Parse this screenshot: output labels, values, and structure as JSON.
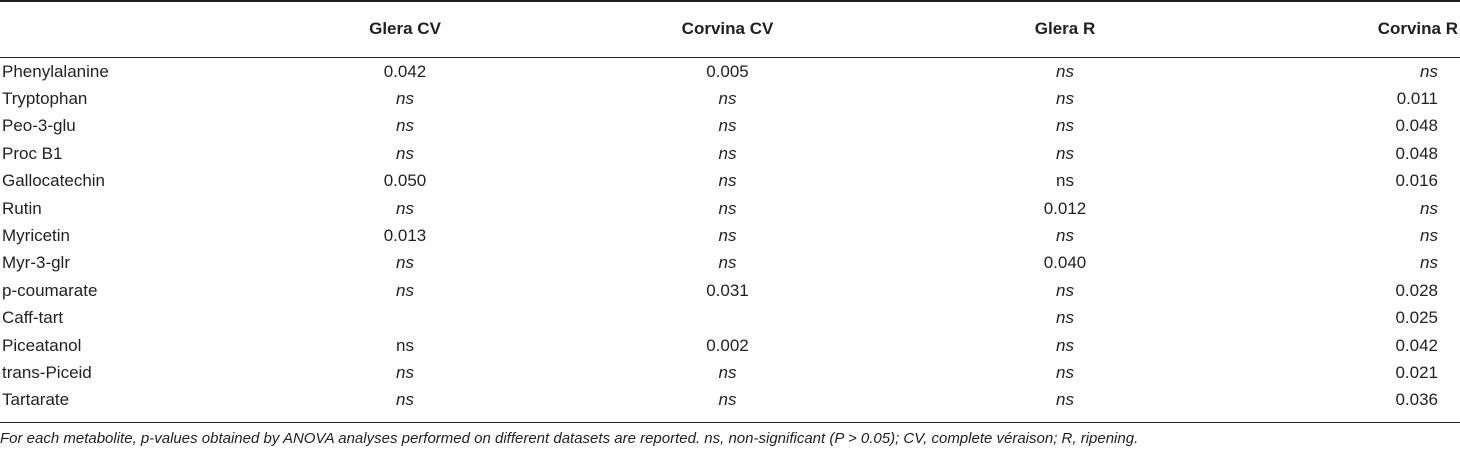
{
  "table": {
    "headers": [
      "",
      "Glera CV",
      "Corvina CV",
      "Glera R",
      "Corvina R"
    ],
    "rows": [
      {
        "name": "Phenylalanine",
        "cells": [
          {
            "text": "0.042",
            "italic": false
          },
          {
            "text": "0.005",
            "italic": false
          },
          {
            "text": "ns",
            "italic": true
          },
          {
            "text": "ns",
            "italic": true
          }
        ]
      },
      {
        "name": "Tryptophan",
        "cells": [
          {
            "text": "ns",
            "italic": true
          },
          {
            "text": "ns",
            "italic": true
          },
          {
            "text": "ns",
            "italic": true
          },
          {
            "text": "0.011",
            "italic": false
          }
        ]
      },
      {
        "name": "Peo-3-glu",
        "cells": [
          {
            "text": "ns",
            "italic": true
          },
          {
            "text": "ns",
            "italic": true
          },
          {
            "text": "ns",
            "italic": true
          },
          {
            "text": "0.048",
            "italic": false
          }
        ]
      },
      {
        "name": "Proc B1",
        "cells": [
          {
            "text": "ns",
            "italic": true
          },
          {
            "text": "ns",
            "italic": true
          },
          {
            "text": "ns",
            "italic": true
          },
          {
            "text": "0.048",
            "italic": false
          }
        ]
      },
      {
        "name": "Gallocatechin",
        "cells": [
          {
            "text": "0.050",
            "italic": false
          },
          {
            "text": "ns",
            "italic": true
          },
          {
            "text": "ns",
            "italic": false
          },
          {
            "text": "0.016",
            "italic": false
          }
        ]
      },
      {
        "name": "Rutin",
        "cells": [
          {
            "text": "ns",
            "italic": true
          },
          {
            "text": "ns",
            "italic": true
          },
          {
            "text": "0.012",
            "italic": false
          },
          {
            "text": "ns",
            "italic": true
          }
        ]
      },
      {
        "name": "Myricetin",
        "cells": [
          {
            "text": "0.013",
            "italic": false
          },
          {
            "text": "ns",
            "italic": true
          },
          {
            "text": "ns",
            "italic": true
          },
          {
            "text": "ns",
            "italic": true
          }
        ]
      },
      {
        "name": "Myr-3-glr",
        "cells": [
          {
            "text": "ns",
            "italic": true
          },
          {
            "text": "ns",
            "italic": true
          },
          {
            "text": "0.040",
            "italic": false
          },
          {
            "text": "ns",
            "italic": true
          }
        ]
      },
      {
        "name": "p-coumarate",
        "cells": [
          {
            "text": "ns",
            "italic": true
          },
          {
            "text": "0.031",
            "italic": false
          },
          {
            "text": "ns",
            "italic": true
          },
          {
            "text": "0.028",
            "italic": false
          }
        ]
      },
      {
        "name": "Caff-tart",
        "cells": [
          {
            "text": "",
            "italic": false
          },
          {
            "text": "",
            "italic": false
          },
          {
            "text": "ns",
            "italic": true
          },
          {
            "text": "0.025",
            "italic": false
          }
        ]
      },
      {
        "name": "Piceatanol",
        "cells": [
          {
            "text": "ns",
            "italic": false
          },
          {
            "text": "0.002",
            "italic": false
          },
          {
            "text": "ns",
            "italic": true
          },
          {
            "text": "0.042",
            "italic": false
          }
        ]
      },
      {
        "name": "trans-Piceid",
        "cells": [
          {
            "text": "ns",
            "italic": true
          },
          {
            "text": "ns",
            "italic": true
          },
          {
            "text": "ns",
            "italic": true
          },
          {
            "text": "0.021",
            "italic": false
          }
        ]
      },
      {
        "name": "Tartarate",
        "cells": [
          {
            "text": "ns",
            "italic": true
          },
          {
            "text": "ns",
            "italic": true
          },
          {
            "text": "ns",
            "italic": true
          },
          {
            "text": "0.036",
            "italic": false
          }
        ]
      }
    ]
  },
  "footnote": "For each metabolite, p-values obtained by ANOVA analyses performed on different datasets are reported. ns, non-significant (P > 0.05); CV, complete véraison; R, ripening."
}
